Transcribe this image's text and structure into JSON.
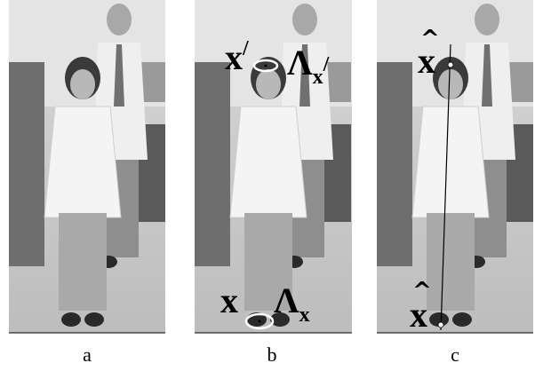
{
  "panels": [
    {
      "caption": "a"
    },
    {
      "caption": "b",
      "annotations": [
        {
          "base": "x",
          "sup": "/"
        },
        {
          "base": "Λ",
          "sub": "x",
          "sub_sup": "/"
        },
        {
          "base": "x"
        },
        {
          "base": "Λ",
          "sub": "x"
        }
      ]
    },
    {
      "caption": "c",
      "annotations": [
        {
          "hat": "^",
          "base": "x"
        },
        {
          "hat": "^",
          "base": "x"
        }
      ]
    }
  ]
}
